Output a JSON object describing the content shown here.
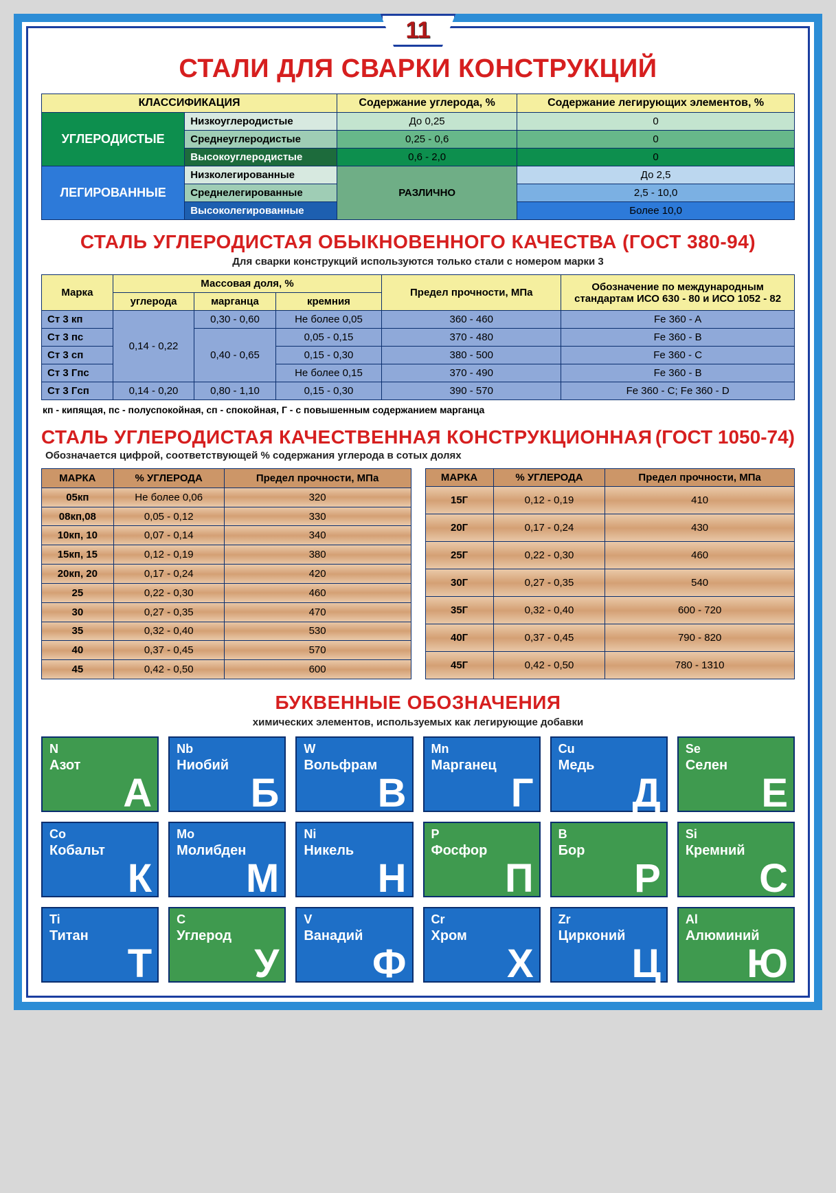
{
  "pageNumber": "11",
  "title": "СТАЛИ ДЛЯ СВАРКИ КОНСТРУКЦИЙ",
  "classification": {
    "headers": [
      "КЛАССИФИКАЦИЯ",
      "Содержание углерода, %",
      "Содержание легирующих элементов, %"
    ],
    "groups": [
      {
        "cat": "УГЛЕРОДИСТЫЕ",
        "catClass": "cat-green",
        "rows": [
          {
            "name": "Низкоуглеродистые",
            "cColor": "#c3e4cf",
            "c": "До 0,25",
            "aColor": "#c3e4cf",
            "a": "0"
          },
          {
            "name": "Среднеуглеродистые",
            "cColor": "#67b88a",
            "c": "0,25 - 0,6",
            "aColor": "#67b88a",
            "a": "0"
          },
          {
            "name": "Высокоуглеродистые",
            "cColor": "#0d8f4e",
            "c": "0,6 - 2,0",
            "aColor": "#0d8f4e",
            "a": "0",
            "nameColor": "#1d6b3c",
            "nameText": "#fff"
          }
        ]
      },
      {
        "cat": "ЛЕГИРОВАННЫЕ",
        "catClass": "cat-blue",
        "merged": {
          "text": "РАЗЛИЧНО",
          "color": "#6fae86"
        },
        "rows": [
          {
            "name": "Низколегированные",
            "aColor": "#bcd7ef",
            "a": "До 2,5"
          },
          {
            "name": "Среднелегированные",
            "aColor": "#7bb0e3",
            "a": "2,5 - 10,0"
          },
          {
            "name": "Высоколегированные",
            "aColor": "#2d7ad9",
            "a": "Более 10,0",
            "nameColor": "#1d5fb0",
            "nameText": "#fff"
          }
        ]
      }
    ],
    "subNameColors": [
      "#d7e9e0",
      "#9fcdb5"
    ]
  },
  "gost380": {
    "title": "СТАЛЬ УГЛЕРОДИСТАЯ ОБЫКНОВЕННОГО КАЧЕСТВА (ГОСТ 380-94)",
    "subtitle": "Для сварки конструкций используются только стали с номером марки 3",
    "head": {
      "mark": "Марка",
      "mass": "Массовая доля, %",
      "massCols": [
        "углерода",
        "марганца",
        "кремния"
      ],
      "strength": "Предел прочности, МПа",
      "iso": "Обозначение по международным стандартам ИСО 630 - 80 и ИСО 1052 - 82"
    },
    "rows": [
      {
        "mark": "Ст 3 кп",
        "c": "",
        "mn": "0,30 - 0,60",
        "si": "Не более 0,05",
        "s": "360 - 460",
        "iso": "Fe 360 - A"
      },
      {
        "mark": "Ст 3 пс",
        "c": "0,14 - 0,22",
        "mn": "",
        "si": "0,05 - 0,15",
        "s": "370 - 480",
        "iso": "Fe 360 - B"
      },
      {
        "mark": "Ст 3 сп",
        "c": "",
        "mn": "0,40 - 0,65",
        "si": "0,15 - 0,30",
        "s": "380 - 500",
        "iso": "Fe 360 - C"
      },
      {
        "mark": "Ст 3 Гпс",
        "c": "",
        "mn": "",
        "si": "Не более 0,15",
        "s": "370 - 490",
        "iso": "Fe 360 - B"
      },
      {
        "mark": "Ст 3 Гсп",
        "c": "0,14 - 0,20",
        "mn": "0,80 - 1,10",
        "si": "0,15 - 0,30",
        "s": "390 - 570",
        "iso": "Fe 360 - C; Fe 360 - D"
      }
    ],
    "note": "кп - кипящая, пс - полуспокойная, сп - спокойная, Г - с повышенным содержанием марганца"
  },
  "gost1050": {
    "titleLeft": "СТАЛЬ  УГЛЕРОДИСТАЯ  КАЧЕСТВЕННАЯ  КОНСТРУКЦИОННАЯ",
    "titleRight": "(ГОСТ 1050-74)",
    "subtitle": "Обозначается цифрой, соответствующей % содержания углерода в сотых долях",
    "headers": [
      "МАРКА",
      "% УГЛЕРОДА",
      "Предел прочности, МПа"
    ],
    "left": [
      [
        "05кп",
        "Не более 0,06",
        "320"
      ],
      [
        "08кп,08",
        "0,05 - 0,12",
        "330"
      ],
      [
        "10кп, 10",
        "0,07 - 0,14",
        "340"
      ],
      [
        "15кп, 15",
        "0,12 - 0,19",
        "380"
      ],
      [
        "20кп, 20",
        "0,17 - 0,24",
        "420"
      ],
      [
        "25",
        "0,22 - 0,30",
        "460"
      ],
      [
        "30",
        "0,27 - 0,35",
        "470"
      ],
      [
        "35",
        "0,32 - 0,40",
        "530"
      ],
      [
        "40",
        "0,37 - 0,45",
        "570"
      ],
      [
        "45",
        "0,42 - 0,50",
        "600"
      ]
    ],
    "right": [
      [
        "15Г",
        "0,12 - 0,19",
        "410"
      ],
      [
        "20Г",
        "0,17 - 0,24",
        "430"
      ],
      [
        "25Г",
        "0,22 - 0,30",
        "460"
      ],
      [
        "30Г",
        "0,27 - 0,35",
        "540"
      ],
      [
        "35Г",
        "0,32 - 0,40",
        "600 - 720"
      ],
      [
        "40Г",
        "0,37 - 0,45",
        "790 - 820"
      ],
      [
        "45Г",
        "0,42 - 0,50",
        "780 - 1310"
      ]
    ]
  },
  "legend": {
    "title": "БУКВЕННЫЕ ОБОЗНАЧЕНИЯ",
    "subtitle": "химических элементов, используемых как легирующие добавки",
    "colors": {
      "green": "#3f9a4f",
      "blue": "#1e6fc7"
    },
    "tiles": [
      {
        "sym": "N",
        "name": "Азот",
        "big": "А",
        "c": "green"
      },
      {
        "sym": "Nb",
        "name": "Ниобий",
        "big": "Б",
        "c": "blue"
      },
      {
        "sym": "W",
        "name": "Вольфрам",
        "big": "В",
        "c": "blue"
      },
      {
        "sym": "Mn",
        "name": "Марганец",
        "big": "Г",
        "c": "blue"
      },
      {
        "sym": "Cu",
        "name": "Медь",
        "big": "Д",
        "c": "blue"
      },
      {
        "sym": "Se",
        "name": "Селен",
        "big": "Е",
        "c": "green"
      },
      {
        "sym": "Co",
        "name": "Кобальт",
        "big": "К",
        "c": "blue"
      },
      {
        "sym": "Mo",
        "name": "Молибден",
        "big": "М",
        "c": "blue"
      },
      {
        "sym": "Ni",
        "name": "Никель",
        "big": "Н",
        "c": "blue"
      },
      {
        "sym": "P",
        "name": "Фосфор",
        "big": "П",
        "c": "green"
      },
      {
        "sym": "B",
        "name": "Бор",
        "big": "Р",
        "c": "green"
      },
      {
        "sym": "Si",
        "name": "Кремний",
        "big": "С",
        "c": "green"
      },
      {
        "sym": "Ti",
        "name": "Титан",
        "big": "Т",
        "c": "blue"
      },
      {
        "sym": "C",
        "name": "Углерод",
        "big": "У",
        "c": "green"
      },
      {
        "sym": "V",
        "name": "Ванадий",
        "big": "Ф",
        "c": "blue"
      },
      {
        "sym": "Cr",
        "name": "Хром",
        "big": "Х",
        "c": "blue"
      },
      {
        "sym": "Zr",
        "name": "Цирконий",
        "big": "Ц",
        "c": "blue"
      },
      {
        "sym": "Al",
        "name": "Алюминий",
        "big": "Ю",
        "c": "green"
      }
    ]
  }
}
